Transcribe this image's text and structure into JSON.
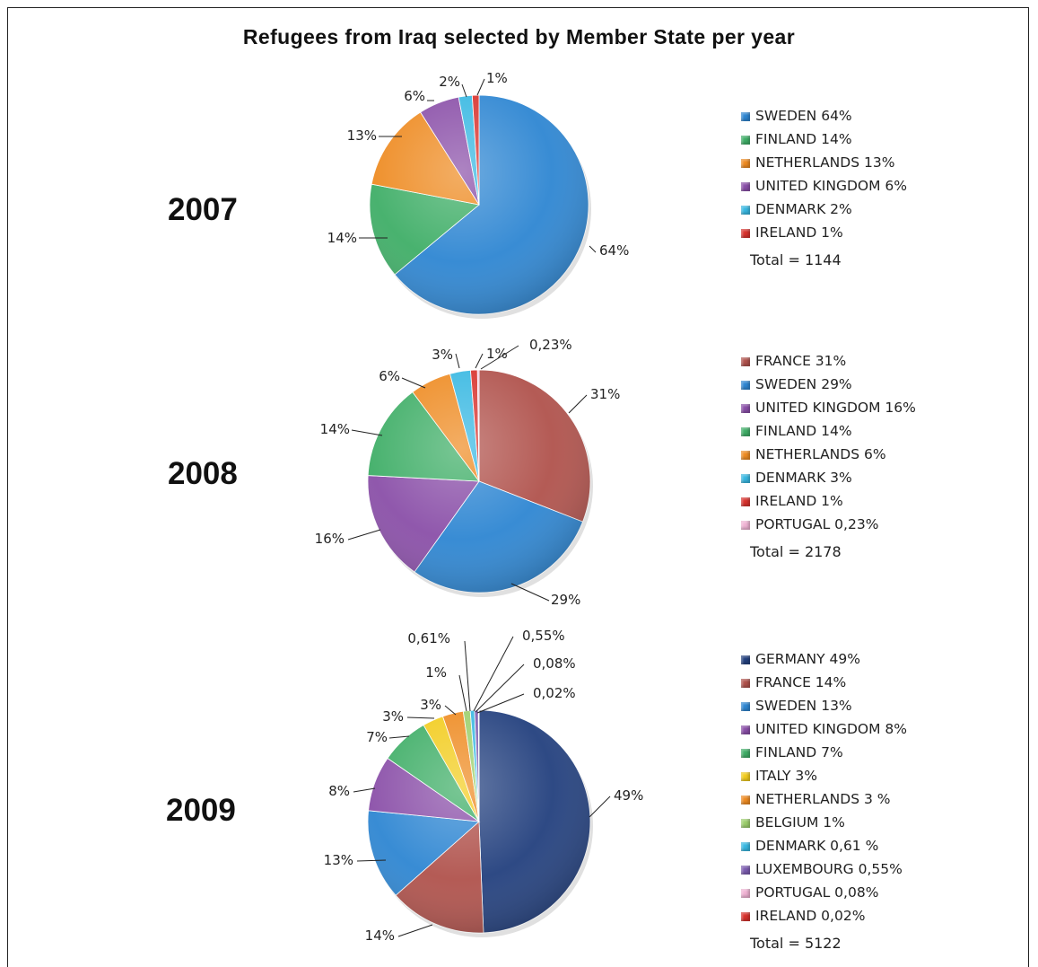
{
  "title": "Refugees from Iraq selected by Member State per year",
  "colors": {
    "GERMANY": "#23407e",
    "FRANCE": "#b0524c",
    "SWEDEN": "#2e86d2",
    "UNITED KINGDOM": "#8a4fa8",
    "FINLAND": "#3fae67",
    "ITALY": "#f2cc1d",
    "NETHERLANDS": "#ee8b22",
    "BELGIUM": "#9ccf6c",
    "DENMARK": "#38b8e2",
    "LUXEMBOURG": "#7c5cb0",
    "PORTUGAL": "#f0b3d4",
    "IRELAND": "#d8322d"
  },
  "chart_data": [
    {
      "type": "pie",
      "year": "2007",
      "title": "2007",
      "slices": [
        {
          "name": "SWEDEN",
          "value": 64,
          "label": "64%",
          "legend": "SWEDEN 64%"
        },
        {
          "name": "FINLAND",
          "value": 14,
          "label": "14%",
          "legend": "FINLAND 14%"
        },
        {
          "name": "NETHERLANDS",
          "value": 13,
          "label": "13%",
          "legend": "NETHERLANDS 13%"
        },
        {
          "name": "UNITED KINGDOM",
          "value": 6,
          "label": "6%",
          "legend": "UNITED KINGDOM 6%"
        },
        {
          "name": "DENMARK",
          "value": 2,
          "label": "2%",
          "legend": "DENMARK 2%"
        },
        {
          "name": "IRELAND",
          "value": 1,
          "label": "1%",
          "legend": "IRELAND 1%"
        }
      ],
      "total": "Total = 1144"
    },
    {
      "type": "pie",
      "year": "2008",
      "title": "2008",
      "slices": [
        {
          "name": "FRANCE",
          "value": 31,
          "label": "31%",
          "legend": "FRANCE 31%"
        },
        {
          "name": "SWEDEN",
          "value": 29,
          "label": "29%",
          "legend": "SWEDEN 29%"
        },
        {
          "name": "UNITED KINGDOM",
          "value": 16,
          "label": "16%",
          "legend": "UNITED KINGDOM 16%"
        },
        {
          "name": "FINLAND",
          "value": 14,
          "label": "14%",
          "legend": "FINLAND 14%"
        },
        {
          "name": "NETHERLANDS",
          "value": 6,
          "label": "6%",
          "legend": "NETHERLANDS 6%"
        },
        {
          "name": "DENMARK",
          "value": 3,
          "label": "3%",
          "legend": "DENMARK 3%"
        },
        {
          "name": "IRELAND",
          "value": 1,
          "label": "1%",
          "legend": "IRELAND 1%"
        },
        {
          "name": "PORTUGAL",
          "value": 0.23,
          "label": "0,23%",
          "legend": "PORTUGAL 0,23%"
        }
      ],
      "total": "Total = 2178"
    },
    {
      "type": "pie",
      "year": "2009",
      "title": "2009",
      "slices": [
        {
          "name": "GERMANY",
          "value": 49,
          "label": "49%",
          "legend": "GERMANY 49%"
        },
        {
          "name": "FRANCE",
          "value": 14,
          "label": "14%",
          "legend": "FRANCE 14%"
        },
        {
          "name": "SWEDEN",
          "value": 13,
          "label": "13%",
          "legend": "SWEDEN 13%"
        },
        {
          "name": "UNITED KINGDOM",
          "value": 8,
          "label": "8%",
          "legend": "UNITED KINGDOM 8%"
        },
        {
          "name": "FINLAND",
          "value": 7,
          "label": "7%",
          "legend": "FINLAND 7%"
        },
        {
          "name": "ITALY",
          "value": 3,
          "label": "3%",
          "legend": "ITALY 3%"
        },
        {
          "name": "NETHERLANDS",
          "value": 3,
          "label": "3%",
          "legend": "NETHERLANDS 3 %"
        },
        {
          "name": "BELGIUM",
          "value": 1,
          "label": "1%",
          "legend": "BELGIUM 1%"
        },
        {
          "name": "DENMARK",
          "value": 0.61,
          "label": "0,61%",
          "legend": "DENMARK 0,61 %"
        },
        {
          "name": "LUXEMBOURG",
          "value": 0.55,
          "label": "0,55%",
          "legend": "LUXEMBOURG 0,55%"
        },
        {
          "name": "PORTUGAL",
          "value": 0.08,
          "label": "0,08%",
          "legend": "PORTUGAL 0,08%"
        },
        {
          "name": "IRELAND",
          "value": 0.02,
          "label": "0,02%",
          "legend": "IRELAND 0,02%"
        }
      ],
      "total": "Total = 5122"
    }
  ]
}
